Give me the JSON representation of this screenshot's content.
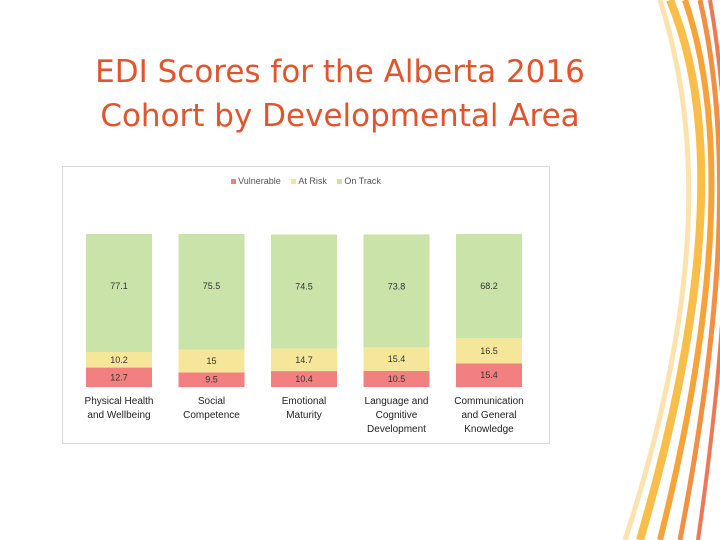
{
  "slide": {
    "title_line1": "EDI Scores for the Alberta 2016",
    "title_line2": "Cohort by Developmental Area"
  },
  "colors": {
    "vulnerable": "#f28080",
    "at_risk": "#f5e69a",
    "on_track": "#c9e3a8",
    "title": "#e0552e"
  },
  "chart_data": {
    "type": "bar",
    "stacked": true,
    "percent_stacked": true,
    "title": "",
    "xlabel": "",
    "ylabel": "",
    "ylim": [
      0,
      100
    ],
    "legend_position": "top",
    "categories": [
      [
        "Physical Health",
        "and Wellbeing"
      ],
      [
        "Social",
        "Competence"
      ],
      [
        "Emotional",
        "Maturity"
      ],
      [
        "Language and",
        "Cognitive",
        "Development"
      ],
      [
        "Communication",
        "and General",
        "Knowledge"
      ]
    ],
    "series": [
      {
        "name": "Vulnerable",
        "color_key": "vulnerable",
        "values": [
          12.7,
          9.5,
          10.4,
          10.5,
          15.4
        ],
        "labels": [
          "12.7",
          "9.5",
          "10.4",
          "10.5",
          "15.4"
        ]
      },
      {
        "name": "At Risk",
        "color_key": "at_risk",
        "values": [
          10.2,
          15,
          14.7,
          15.4,
          16.5
        ],
        "labels": [
          "10.2",
          "15",
          "14.7",
          "15.4",
          "16.5"
        ]
      },
      {
        "name": "On Track",
        "color_key": "on_track",
        "values": [
          77.1,
          75.5,
          74.5,
          73.8,
          68.2
        ],
        "labels": [
          "77.1",
          "75.5",
          "74.5",
          "73.8",
          "68.2"
        ]
      }
    ]
  }
}
